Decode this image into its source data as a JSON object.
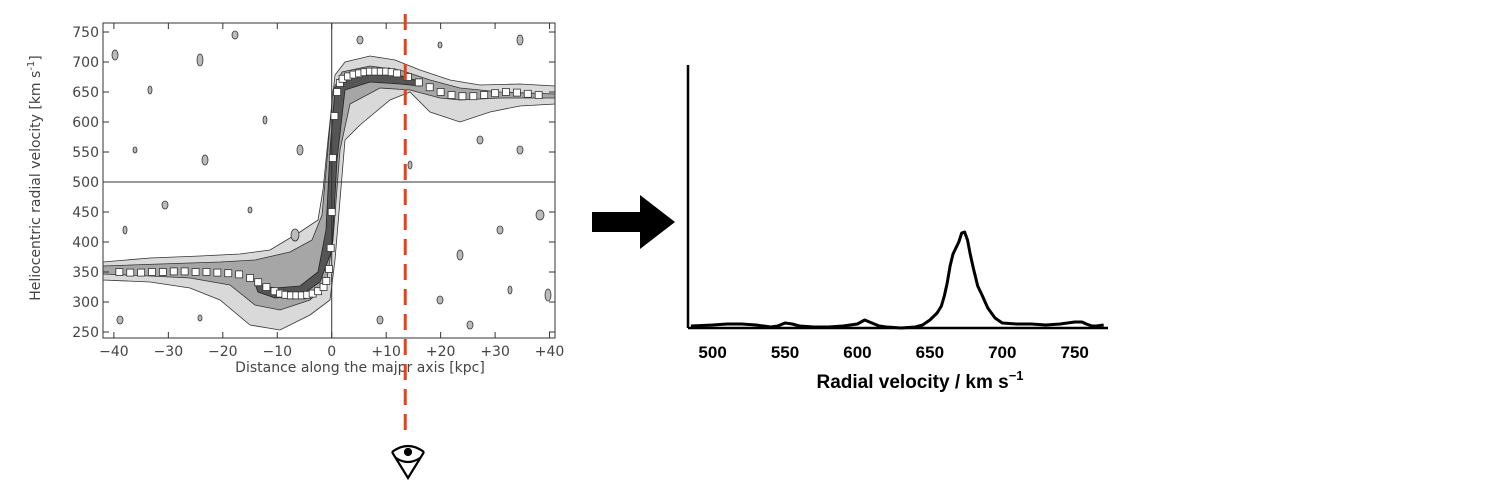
{
  "chart_data": [
    {
      "type": "scatter",
      "xlabel": "Distance along the majpr axis [kpc]",
      "ylabel": "Heliocentric radial velocity [km s",
      "ylabel_sup": "-1",
      "ylabel_end": "]",
      "xlim": [
        -42,
        41
      ],
      "ylim": [
        240,
        765
      ],
      "x_ticks": [
        -40,
        -30,
        -20,
        -10,
        0,
        10,
        20,
        30,
        40
      ],
      "x_tick_labels": [
        "−40",
        "−30",
        "−20",
        "−10",
        "0",
        "+10",
        "+20",
        "+30",
        "+40"
      ],
      "y_ticks": [
        250,
        300,
        350,
        400,
        450,
        500,
        550,
        600,
        650,
        700,
        750
      ],
      "y_tick_labels": [
        "250",
        "300",
        "350",
        "400",
        "450",
        "500",
        "550",
        "600",
        "650",
        "700",
        "750"
      ],
      "reference_lines": {
        "x": 0,
        "y": 500
      },
      "cut_line": {
        "x": 13.5,
        "color": "#e8401c"
      },
      "points": [
        [
          -39,
          350
        ],
        [
          -37,
          349
        ],
        [
          -35,
          349
        ],
        [
          -33,
          350
        ],
        [
          -31,
          350
        ],
        [
          -29,
          351
        ],
        [
          -27,
          351
        ],
        [
          -25,
          350
        ],
        [
          -23,
          350
        ],
        [
          -21,
          349
        ],
        [
          -19,
          348
        ],
        [
          -17,
          346
        ],
        [
          -15,
          340
        ],
        [
          -13.5,
          333
        ],
        [
          -12,
          325
        ],
        [
          -10.5,
          318
        ],
        [
          -9.5,
          314
        ],
        [
          -8.5,
          312
        ],
        [
          -7.5,
          311
        ],
        [
          -6.5,
          311
        ],
        [
          -5.5,
          311
        ],
        [
          -4.5,
          312
        ],
        [
          -3.5,
          314
        ],
        [
          -2.5,
          318
        ],
        [
          -1.5,
          325
        ],
        [
          -1,
          335
        ],
        [
          -0.5,
          355
        ],
        [
          -0.2,
          390
        ],
        [
          0,
          450
        ],
        [
          0.2,
          540
        ],
        [
          0.5,
          610
        ],
        [
          1,
          650
        ],
        [
          1.5,
          665
        ],
        [
          2,
          672
        ],
        [
          3,
          676
        ],
        [
          4,
          679
        ],
        [
          5,
          681
        ],
        [
          6,
          683
        ],
        [
          7,
          684
        ],
        [
          8,
          684
        ],
        [
          9,
          684
        ],
        [
          10,
          684
        ],
        [
          11,
          683
        ],
        [
          12,
          681
        ],
        [
          14,
          675
        ],
        [
          16,
          666
        ],
        [
          18,
          658
        ],
        [
          20,
          650
        ],
        [
          22,
          645
        ],
        [
          24,
          643
        ],
        [
          26,
          643
        ],
        [
          28,
          645
        ],
        [
          30,
          648
        ],
        [
          32,
          650
        ],
        [
          34,
          649
        ],
        [
          36,
          647
        ],
        [
          38,
          645
        ]
      ]
    },
    {
      "type": "line",
      "xlabel": "Radial velocity / km s",
      "xlabel_sup": "−1",
      "xlim": [
        483,
        773
      ],
      "x_ticks": [
        500,
        550,
        600,
        650,
        700,
        750
      ],
      "x_tick_labels": [
        "500",
        "550",
        "600",
        "650",
        "700",
        "750"
      ],
      "x": [
        485,
        500,
        510,
        520,
        530,
        540,
        545,
        550,
        555,
        560,
        570,
        580,
        590,
        600,
        605,
        610,
        615,
        620,
        630,
        640,
        645,
        650,
        655,
        658,
        660,
        662,
        664,
        666,
        668,
        670,
        672,
        674,
        676,
        678,
        680,
        683,
        686,
        690,
        695,
        700,
        710,
        720,
        730,
        740,
        745,
        750,
        755,
        758,
        760,
        762,
        765,
        770
      ],
      "y": [
        2,
        3,
        4,
        4,
        3,
        1,
        2,
        5,
        4,
        2,
        1,
        1,
        2,
        4,
        8,
        5,
        2,
        1,
        0,
        1,
        3,
        8,
        15,
        22,
        32,
        45,
        62,
        74,
        80,
        86,
        95,
        96,
        88,
        73,
        60,
        42,
        33,
        20,
        10,
        5,
        4,
        4,
        3,
        4,
        5,
        6,
        6,
        4,
        3,
        2,
        2,
        3
      ]
    }
  ]
}
